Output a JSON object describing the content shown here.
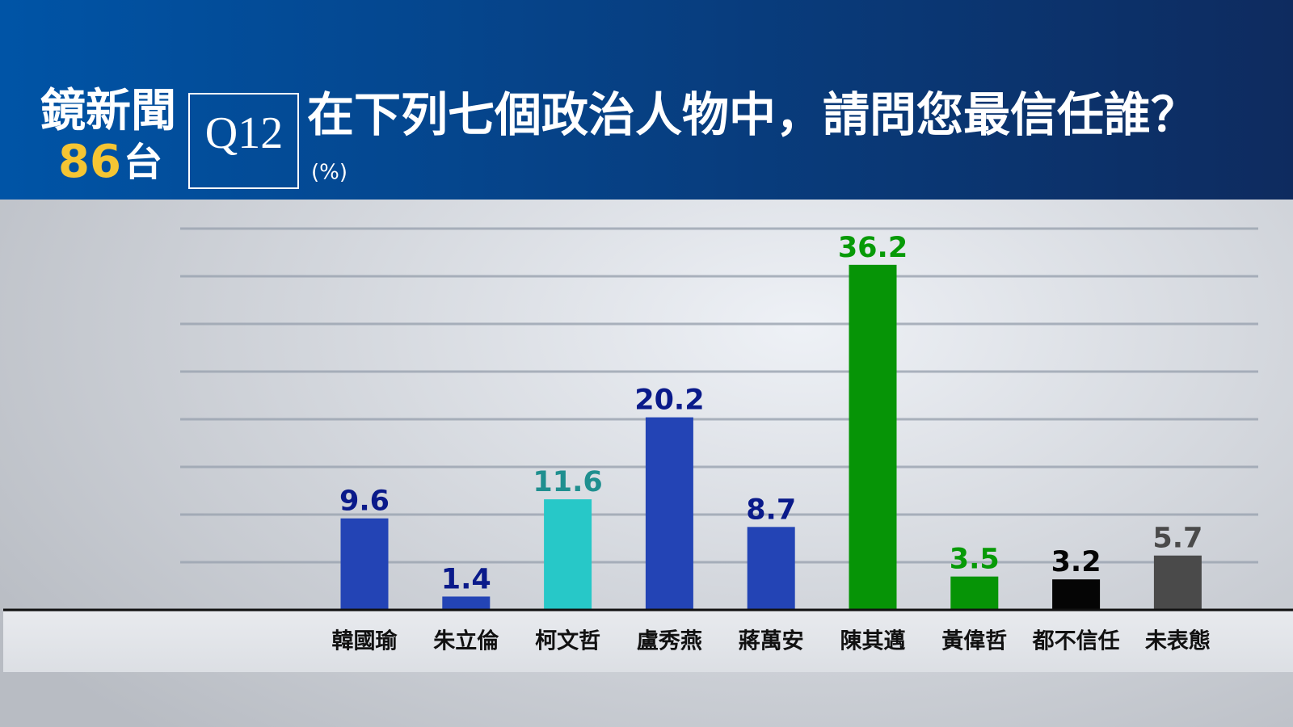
{
  "logo": {
    "name": "鏡新聞",
    "number": "86",
    "suffix": "台"
  },
  "chart_data": {
    "type": "bar",
    "question": "Q12",
    "title": "在下列七個政治人物中，請問您最信任誰？",
    "subtitle": "(%)",
    "categories": [
      "韓國瑜",
      "朱立倫",
      "柯文哲",
      "盧秀燕",
      "蔣萬安",
      "陳其邁",
      "黃偉哲",
      "都不信任",
      "未表態"
    ],
    "values": [
      9.6,
      1.4,
      11.6,
      20.2,
      8.7,
      36.2,
      3.5,
      3.2,
      5.7
    ],
    "colors": [
      "#2344b5",
      "#2344b5",
      "#27c8c8",
      "#2344b5",
      "#2344b5",
      "#069406",
      "#069406",
      "#050505",
      "#4a4a4a"
    ],
    "label_colors": [
      "#0a1a8a",
      "#0a1a8a",
      "#1f8f8f",
      "#0a1a8a",
      "#0a1a8a",
      "#079a07",
      "#079a07",
      "#050505",
      "#4a4a4a"
    ],
    "ylim": [
      0,
      40
    ],
    "yticks": [
      5,
      10,
      15,
      20,
      25,
      30,
      35,
      40
    ],
    "grid": true
  }
}
